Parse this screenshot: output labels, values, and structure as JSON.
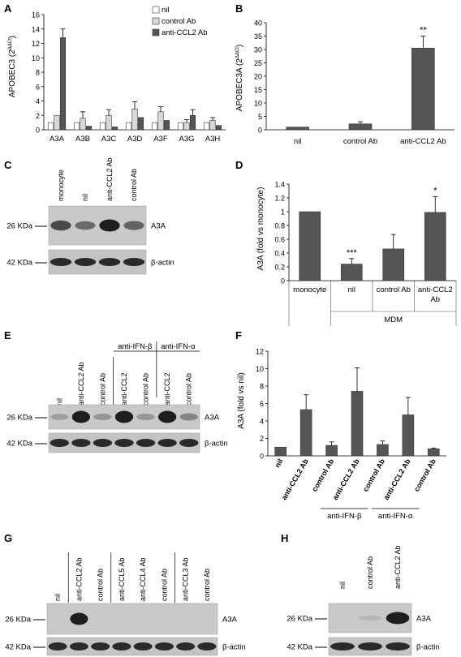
{
  "panels": {
    "A": {
      "letter": "A",
      "chart_data": {
        "type": "bar",
        "categories": [
          "A3A",
          "A3B",
          "A3C",
          "A3D",
          "A3F",
          "A3G",
          "A3H"
        ],
        "ylabel": "APOBEC3 (2ΔΔCt)",
        "ylim": [
          0,
          16
        ],
        "yticks": [
          0,
          2,
          4,
          6,
          8,
          10,
          12,
          14,
          16
        ],
        "legend_position": "top-right",
        "series": [
          {
            "name": "nil",
            "color": "#ffffff",
            "values": [
              1,
              1,
              1,
              1,
              1,
              1,
              1
            ],
            "errors": [
              0,
              0,
              0,
              0,
              0,
              0,
              0
            ]
          },
          {
            "name": "control Ab",
            "color": "#d9d9d9",
            "values": [
              2.0,
              1.6,
              2.0,
              2.9,
              2.5,
              1.0,
              1.3
            ],
            "errors": [
              0,
              0.9,
              0.8,
              1.0,
              0.7,
              0.4,
              0.4
            ]
          },
          {
            "name": "anti-CCL2 Ab",
            "color": "#555555",
            "values": [
              12.8,
              0.5,
              0.4,
              1.7,
              1.3,
              2.0,
              0.6
            ],
            "errors": [
              1.2,
              0,
              0,
              0,
              0,
              0.8,
              0
            ]
          }
        ]
      }
    },
    "B": {
      "letter": "B",
      "chart_data": {
        "type": "bar",
        "categories": [
          "nil",
          "control Ab",
          "anti-CCL2 Ab"
        ],
        "ylabel": "APOBEC3A (2ΔΔCt)",
        "ylim": [
          0,
          40
        ],
        "yticks": [
          0,
          5,
          10,
          15,
          20,
          25,
          30,
          35,
          40
        ],
        "values": [
          1.0,
          2.2,
          30.5
        ],
        "errors": [
          0,
          0.8,
          4.5
        ],
        "significance": [
          "",
          "",
          "**"
        ]
      }
    },
    "C": {
      "letter": "C",
      "lanes": [
        "monocyte",
        "nil",
        "anti-CCL2 Ab",
        "control Ab"
      ],
      "markers": [
        "26 KDa",
        "42 KDa"
      ],
      "bands": [
        "A3A",
        "β-actin"
      ],
      "a3a_levels": [
        0.75,
        0.55,
        1.0,
        0.6
      ]
    },
    "D": {
      "letter": "D",
      "chart_data": {
        "type": "bar",
        "categories": [
          "monocyte",
          "nil",
          "control Ab",
          "anti-CCL2 Ab"
        ],
        "ylabel": "A3A (fold vs monocyte)",
        "ylim": [
          0,
          1.4
        ],
        "yticks": [
          "0",
          "0.2",
          "0.4",
          "0.6",
          "0.8",
          "1",
          "1.2",
          "1.4"
        ],
        "values": [
          1.0,
          0.24,
          0.46,
          0.99
        ],
        "errors": [
          0,
          0.08,
          0.21,
          0.23
        ],
        "significance": [
          "",
          "***",
          "",
          "*"
        ],
        "group_label": "MDM"
      }
    },
    "E": {
      "letter": "E",
      "lanes": [
        "nil",
        "anti-CCL2 Ab",
        "control Ab",
        "anti-CCL2",
        "control Ab",
        "anti-CCL2",
        "control Ab"
      ],
      "group_labels": [
        "anti-IFN-β",
        "anti-IFN-α"
      ],
      "markers": [
        "26 KDa",
        "42 KDa"
      ],
      "bands": [
        "A3A",
        "β-actin"
      ],
      "a3a_levels": [
        0.25,
        1.0,
        0.3,
        1.0,
        0.3,
        1.0,
        0.4
      ]
    },
    "F": {
      "letter": "F",
      "chart_data": {
        "type": "bar",
        "categories": [
          "nil",
          "anti-CCL2 Ab",
          "control Ab",
          "anti-CCL2 Ab",
          "control Ab",
          "anti-CCL2 Ab",
          "control Ab"
        ],
        "ylabel": "A3A (fold vs nil)",
        "ylim": [
          0,
          12
        ],
        "yticks": [
          0,
          2,
          4,
          6,
          8,
          10,
          12
        ],
        "values": [
          1.0,
          5.3,
          1.2,
          7.4,
          1.3,
          4.7,
          0.8
        ],
        "errors": [
          0,
          1.7,
          0.4,
          2.7,
          0.4,
          2.0,
          0.1
        ],
        "group_labels": [
          "anti-IFN-β",
          "anti-IFN-α"
        ]
      }
    },
    "G": {
      "letter": "G",
      "lanes": [
        "nil",
        "anti-CCL2 Ab",
        "control Ab",
        "anti-CCL5 Ab",
        "anti-CCL4 Ab",
        "control Ab",
        "anti-CCL3 Ab",
        "control Ab"
      ],
      "markers": [
        "26 KDa",
        "42 KDa"
      ],
      "bands": [
        "A3A",
        "β-actin"
      ],
      "a3a_levels": [
        0,
        1.0,
        0,
        0,
        0,
        0,
        0,
        0
      ]
    },
    "H": {
      "letter": "H",
      "lanes": [
        "nil",
        "control Ab",
        "anti-CCL2 Ab"
      ],
      "markers": [
        "26 KDa",
        "42 KDa"
      ],
      "bands": [
        "A3A",
        "β-actin"
      ],
      "a3a_levels": [
        0,
        0.1,
        1.0
      ]
    }
  }
}
